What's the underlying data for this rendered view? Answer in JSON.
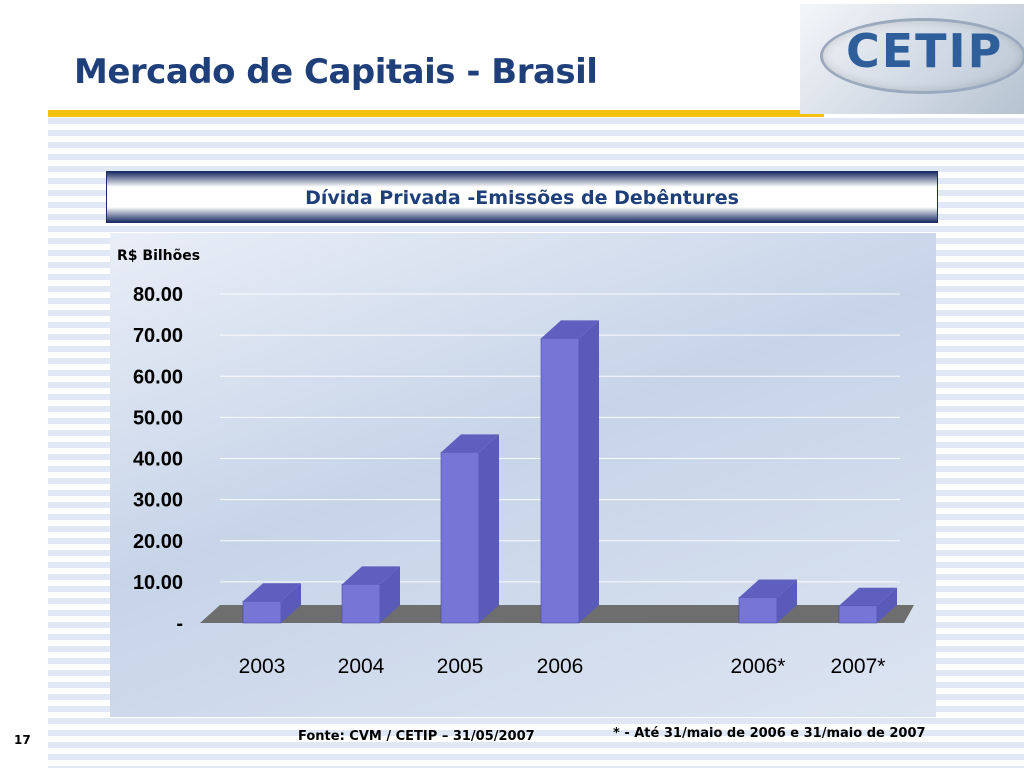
{
  "slide": {
    "title": "Mercado de Capitais - Brasil",
    "logo_text": "CETIP",
    "page_number": "17",
    "source_note": "Fonte: CVM / CETIP – 31/05/2007",
    "footnote": "* - Até 31/maio de 2006 e 31/maio de 2007"
  },
  "colors": {
    "title": "#1e3f7a",
    "accent_bar": "#f4c20d",
    "bar_front": "#7676d6",
    "bar_side": "#5a5ab8",
    "bar_top": "#5f5fc0",
    "floor": "#6e6e6e"
  },
  "chart_data": {
    "type": "bar",
    "title": "Dívida Privada -Emissões de Debêntures",
    "ylabel": "R$ Bilhões",
    "xlabel": "",
    "categories": [
      "2003",
      "2004",
      "2005",
      "2006",
      "2006*",
      "2007*"
    ],
    "values": [
      5.3,
      9.4,
      41.5,
      69.2,
      6.2,
      4.2
    ],
    "ylim": [
      0,
      80
    ],
    "y_ticks": [
      "-",
      "10.00",
      "20.00",
      "30.00",
      "40.00",
      "50.00",
      "60.00",
      "70.00",
      "80.00"
    ],
    "grid": true,
    "legend": "none"
  }
}
